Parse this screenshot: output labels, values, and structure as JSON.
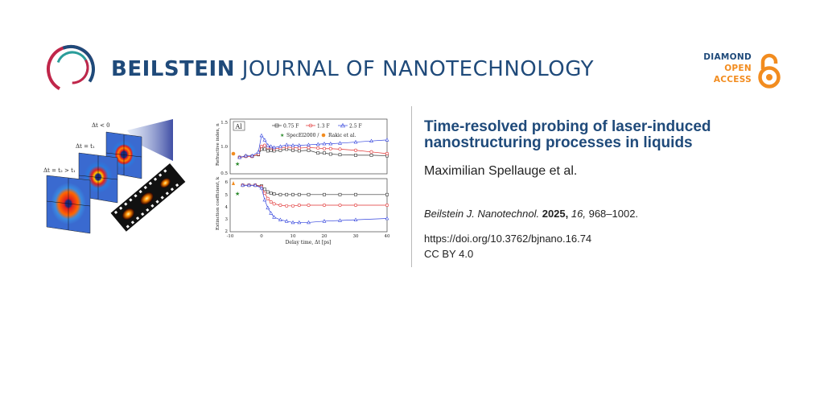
{
  "header": {
    "journal_bold": "BEILSTEIN",
    "journal_rest": "JOURNAL OF NANOTECHNOLOGY",
    "badge_line1": "DIAMOND",
    "badge_line2": "OPEN",
    "badge_line3": "ACCESS",
    "colors": {
      "brand_blue": "#1f4a7a",
      "brand_red": "#c0264a",
      "brand_teal": "#2a9d9a",
      "oa_orange": "#f28c1f"
    }
  },
  "article": {
    "title": "Time-resolved probing of laser-induced nanostructuring processes in liquids",
    "authors": "Maximilian Spellauge et al.",
    "citation_journal": "Beilstein J. Nanotechnol.",
    "citation_year": "2025,",
    "citation_volume": "16,",
    "citation_pages": "968–1002.",
    "doi": "https://doi.org/10.3762/bjnano.16.74",
    "license": "CC BY 4.0"
  },
  "figure": {
    "left_labels": [
      "Δt < 0",
      "Δt = t₁",
      "Δt = t₂ > t₁"
    ],
    "panel_tag": "Al",
    "legend": [
      "0.75 F",
      "1.3 F",
      "2.5 F",
      "SpecEl2000 /",
      "Rakic et al."
    ],
    "top_ylabel": "Refractive index, n",
    "bottom_ylabel": "Extinction coefficient, k",
    "xlabel": "Delay time, Δt [ps]",
    "top_yticks": [
      "1.5",
      "1.0",
      "0.5"
    ],
    "bottom_yticks": [
      "6",
      "5",
      "4",
      "3",
      "2"
    ],
    "xticks": [
      "-10",
      "0",
      "10",
      "20",
      "30",
      "40"
    ]
  },
  "chart_data": [
    {
      "type": "line",
      "xlabel": "Delay time, Δt [ps]",
      "ylabel": "Refractive index, n",
      "xlim": [
        -10,
        40
      ],
      "ylim": [
        0.5,
        1.5
      ],
      "series": [
        {
          "name": "0.75 F",
          "color": "#333333",
          "x": [
            -7,
            -5,
            -3,
            -1,
            0,
            1,
            2,
            3,
            4,
            6,
            8,
            10,
            12,
            15,
            18,
            20,
            22,
            25,
            30,
            35,
            40
          ],
          "y": [
            0.8,
            0.82,
            0.82,
            0.85,
            0.95,
            0.95,
            0.92,
            0.93,
            0.92,
            0.93,
            0.95,
            0.93,
            0.92,
            0.93,
            0.88,
            0.88,
            0.86,
            0.85,
            0.84,
            0.84,
            0.83
          ]
        },
        {
          "name": "1.3 F",
          "color": "#e03030",
          "x": [
            -7,
            -5,
            -3,
            -1,
            0,
            1,
            2,
            3,
            4,
            6,
            8,
            10,
            12,
            15,
            18,
            20,
            22,
            25,
            30,
            35,
            40
          ],
          "y": [
            0.8,
            0.82,
            0.82,
            0.86,
            1.0,
            1.02,
            0.98,
            0.98,
            0.96,
            0.97,
            0.99,
            0.98,
            0.97,
            0.98,
            0.97,
            0.96,
            0.96,
            0.95,
            0.93,
            0.9,
            0.87
          ]
        },
        {
          "name": "2.5 F",
          "color": "#3344dd",
          "x": [
            -7,
            -5,
            -3,
            -1,
            0,
            1,
            2,
            3,
            4,
            6,
            8,
            10,
            12,
            15,
            18,
            20,
            22,
            25,
            30,
            35,
            40
          ],
          "y": [
            0.8,
            0.83,
            0.83,
            0.9,
            1.2,
            1.12,
            1.02,
            1.0,
            0.98,
            1.0,
            1.03,
            1.02,
            1.02,
            1.03,
            1.04,
            1.05,
            1.05,
            1.06,
            1.08,
            1.1,
            1.12
          ]
        }
      ]
    },
    {
      "type": "line",
      "xlabel": "Delay time, Δt [ps]",
      "ylabel": "Extinction coefficient, k",
      "xlim": [
        -10,
        40
      ],
      "ylim": [
        2,
        6
      ],
      "series": [
        {
          "name": "0.75 F",
          "color": "#333333",
          "x": [
            -6,
            -4,
            -2,
            0,
            1,
            2,
            3,
            4,
            6,
            8,
            10,
            12,
            15,
            20,
            25,
            30,
            40
          ],
          "y": [
            5.5,
            5.5,
            5.5,
            5.45,
            5.2,
            5.0,
            4.9,
            4.85,
            4.8,
            4.8,
            4.8,
            4.8,
            4.8,
            4.8,
            4.8,
            4.8,
            4.8
          ]
        },
        {
          "name": "1.3 F",
          "color": "#e03030",
          "x": [
            -6,
            -4,
            -2,
            0,
            1,
            2,
            3,
            4,
            6,
            8,
            10,
            12,
            15,
            20,
            25,
            30,
            40
          ],
          "y": [
            5.5,
            5.5,
            5.5,
            5.4,
            4.9,
            4.5,
            4.25,
            4.1,
            4.0,
            3.95,
            3.95,
            4.0,
            4.0,
            4.0,
            4.0,
            4.0,
            4.0
          ]
        },
        {
          "name": "2.5 F",
          "color": "#3344dd",
          "x": [
            -6,
            -4,
            -2,
            0,
            1,
            2,
            3,
            4,
            6,
            8,
            10,
            12,
            15,
            20,
            25,
            30,
            40
          ],
          "y": [
            5.5,
            5.5,
            5.5,
            5.3,
            4.4,
            3.8,
            3.4,
            3.1,
            2.9,
            2.8,
            2.7,
            2.7,
            2.7,
            2.8,
            2.85,
            2.9,
            3.0
          ]
        }
      ]
    }
  ]
}
